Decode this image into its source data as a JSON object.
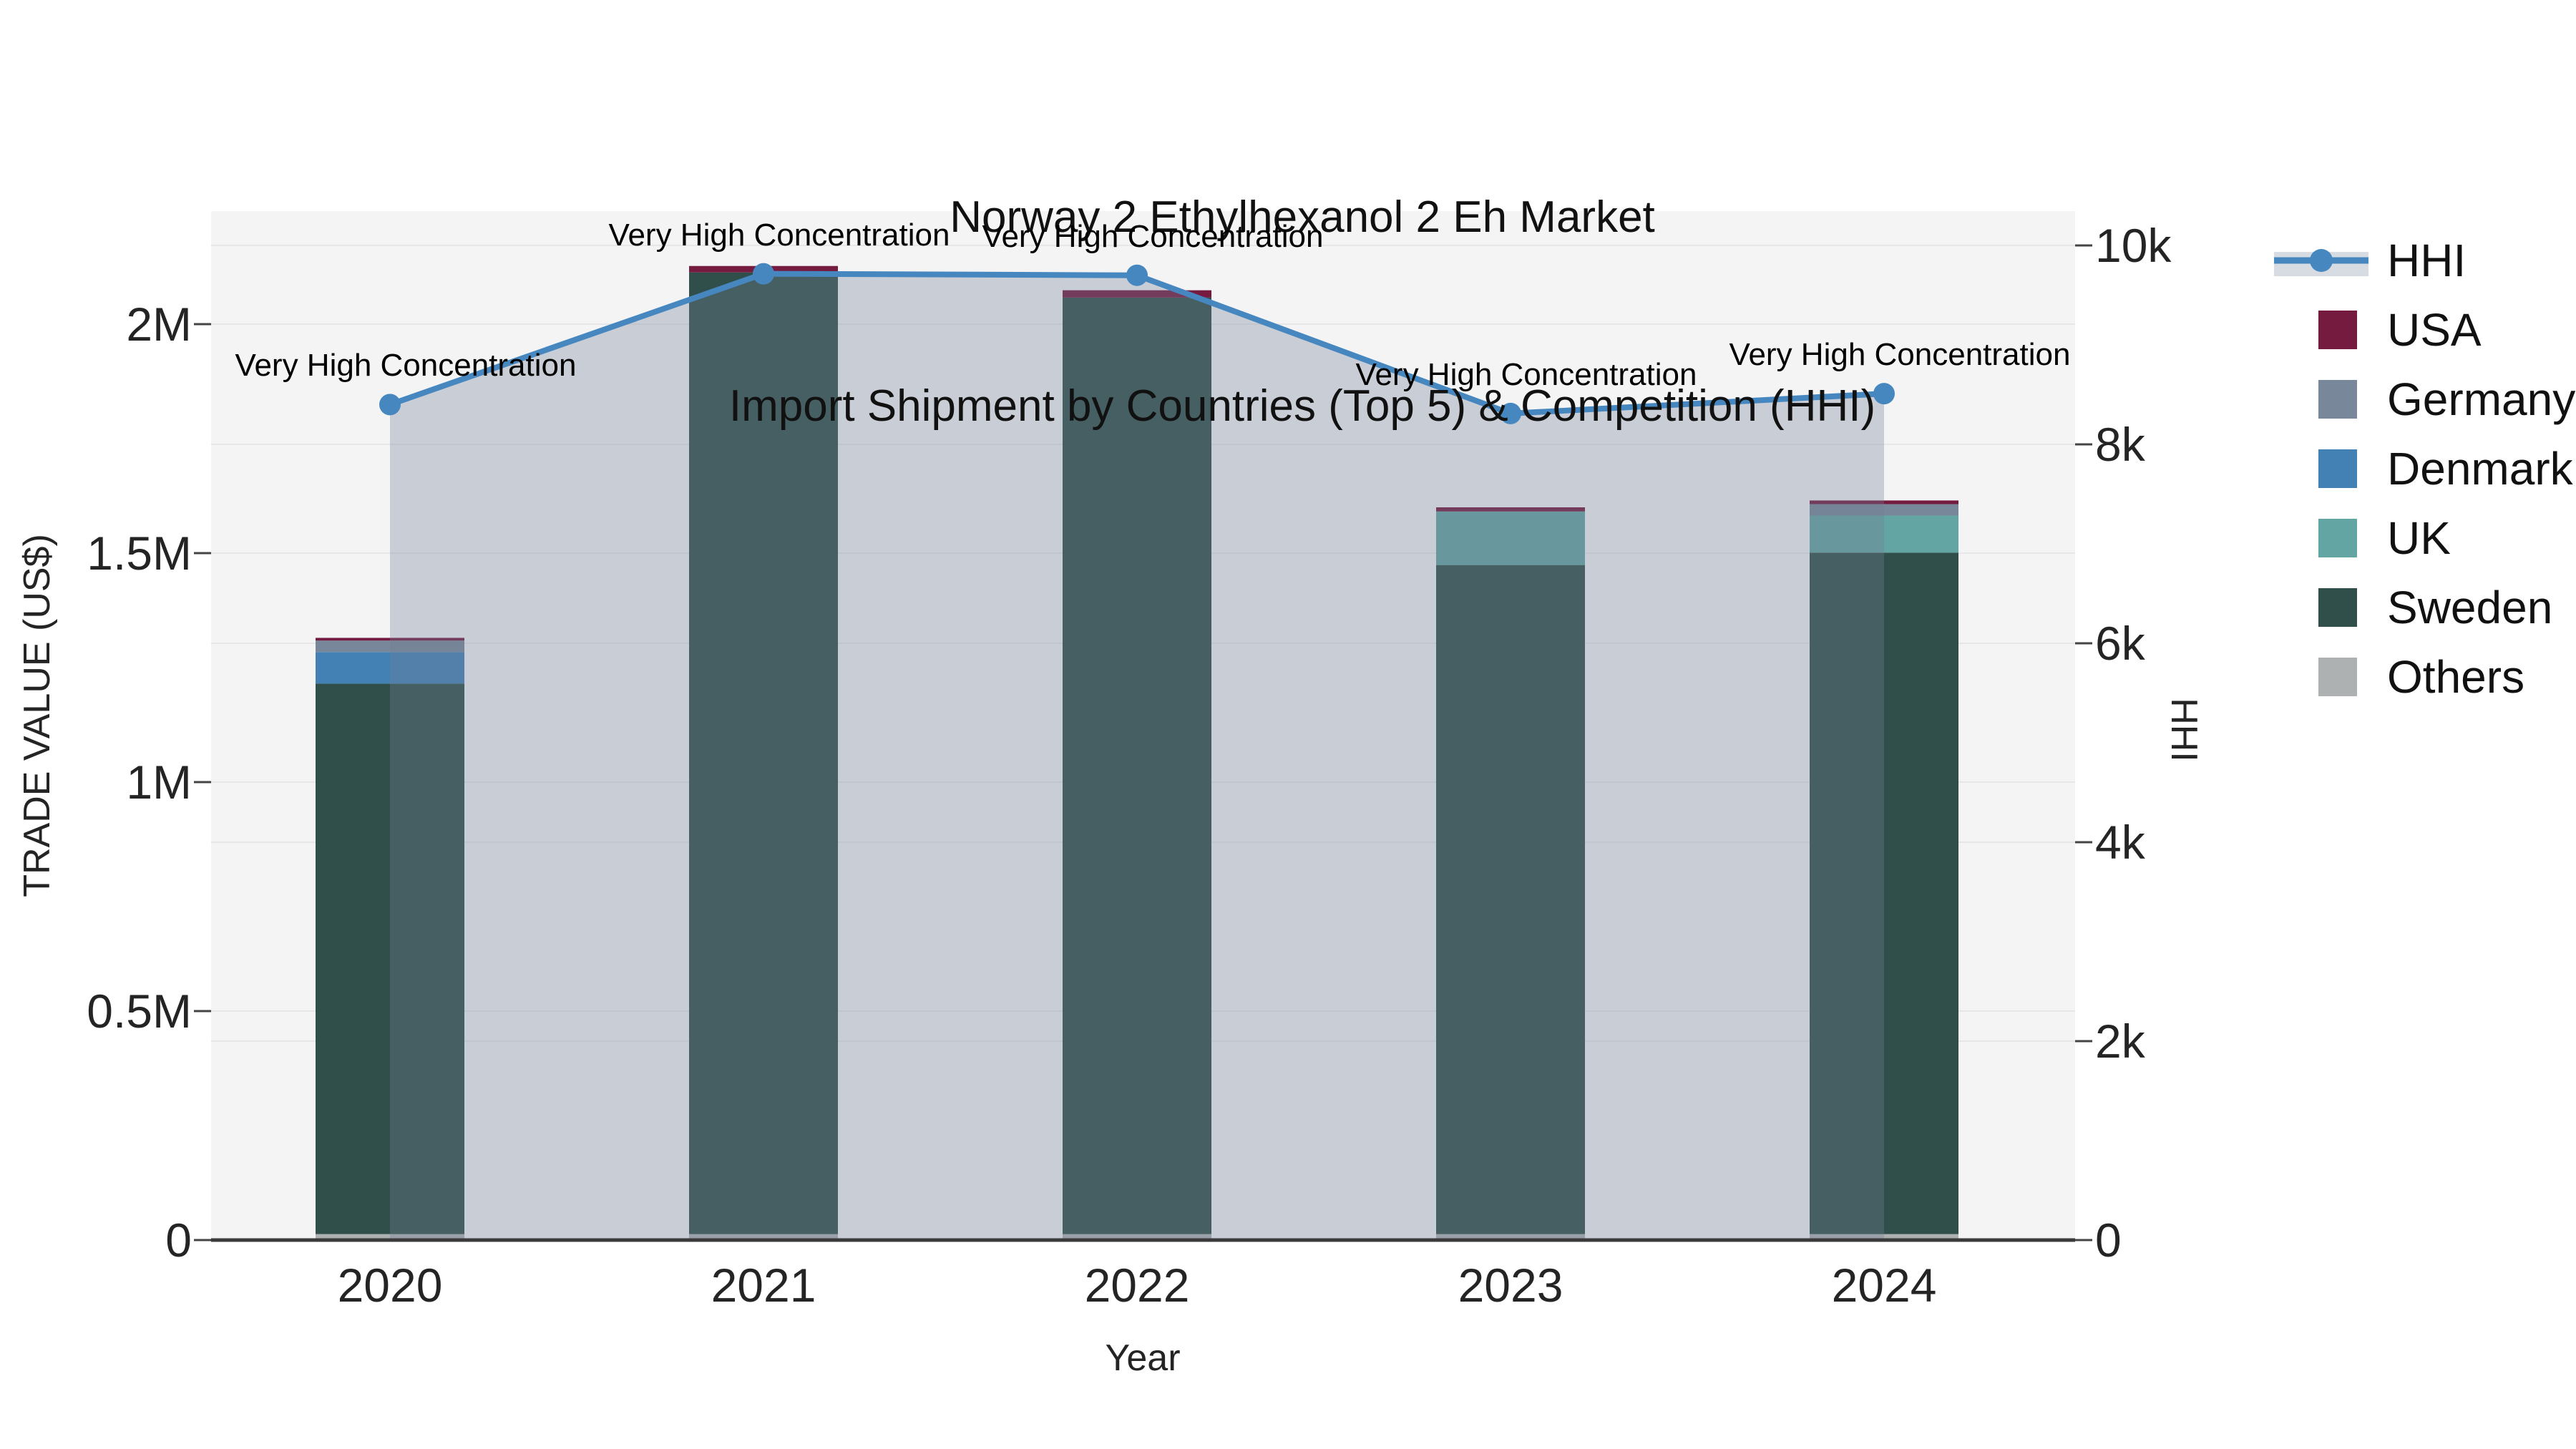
{
  "title": {
    "line1": "Norway 2 Ethylhexanol 2 Eh Market",
    "line2": "Import Shipment by Countries (Top 5) & Competition (HHI)"
  },
  "axes": {
    "left": {
      "title": "TRADE VALUE (US$)",
      "ticks": [
        {
          "label": "0",
          "value": 0
        },
        {
          "label": "0.5M",
          "value": 500000
        },
        {
          "label": "1M",
          "value": 1000000
        },
        {
          "label": "1.5M",
          "value": 1500000
        },
        {
          "label": "2M",
          "value": 2000000
        }
      ]
    },
    "right": {
      "title": "HHI",
      "ticks": [
        {
          "label": "0",
          "value": 0
        },
        {
          "label": "2k",
          "value": 2000
        },
        {
          "label": "4k",
          "value": 4000
        },
        {
          "label": "6k",
          "value": 6000
        },
        {
          "label": "8k",
          "value": 8000
        },
        {
          "label": "10k",
          "value": 10000
        }
      ]
    },
    "x": {
      "title": "Year"
    }
  },
  "legend": [
    {
      "label": "HHI",
      "type": "line",
      "color": "#4787bf"
    },
    {
      "label": "USA",
      "type": "swatch",
      "color": "#751b40"
    },
    {
      "label": "Germany",
      "type": "swatch",
      "color": "#78879a"
    },
    {
      "label": "Denmark",
      "type": "swatch",
      "color": "#4381b5"
    },
    {
      "label": "UK",
      "type": "swatch",
      "color": "#63a5a2"
    },
    {
      "label": "Sweden",
      "type": "swatch",
      "color": "#304f4b"
    },
    {
      "label": "Others",
      "type": "swatch",
      "color": "#adb1b2"
    }
  ],
  "chart_data": {
    "type": "bar",
    "subtype": "stacked-bars-with-secondary-line",
    "title": "Norway 2 Ethylhexanol 2 Eh Market — Import Shipment by Countries (Top 5) & Competition (HHI)",
    "xlabel": "Year",
    "ylabel": "TRADE VALUE (US$)",
    "y2label": "HHI",
    "ylim": [
      0,
      2250000
    ],
    "y2lim": [
      0,
      10350
    ],
    "grid": true,
    "legend_position": "right",
    "categories": [
      "2020",
      "2021",
      "2022",
      "2023",
      "2024"
    ],
    "series": [
      {
        "name": "USA",
        "color": "#751b40",
        "values": [
          6000,
          14000,
          16000,
          9000,
          8000
        ]
      },
      {
        "name": "Germany",
        "color": "#78879a",
        "values": [
          25000,
          0,
          0,
          0,
          25000
        ]
      },
      {
        "name": "Denmark",
        "color": "#4381b5",
        "values": [
          69000,
          0,
          0,
          0,
          0
        ]
      },
      {
        "name": "UK",
        "color": "#63a5a2",
        "values": [
          0,
          0,
          0,
          117000,
          81000
        ]
      },
      {
        "name": "Sweden",
        "color": "#304f4b",
        "values": [
          1202000,
          2100000,
          2045000,
          1461000,
          1488000
        ]
      },
      {
        "name": "Others",
        "color": "#adb1b2",
        "values": [
          13000,
          13000,
          13000,
          13000,
          13000
        ]
      }
    ],
    "line_series": {
      "name": "HHI",
      "axis": "right",
      "color": "#4787bf",
      "fill": "rgba(116,128,148,0.33)",
      "values": [
        8400,
        9715,
        9700,
        8310,
        8510
      ]
    },
    "annotations": [
      {
        "text": "Very High Concentration",
        "x": "2020"
      },
      {
        "text": "Very High Concentration",
        "x": "2021"
      },
      {
        "text": "Very High Concentration",
        "x": "2022"
      },
      {
        "text": "Very High Concentration",
        "x": "2023"
      },
      {
        "text": "Very High Concentration",
        "x": "2024"
      }
    ],
    "colors": {
      "plot_bg": "#f4f4f5",
      "grid": "#e7e7ea",
      "axis_line": "#3a3a3a",
      "tick_mark": "#444444"
    }
  }
}
